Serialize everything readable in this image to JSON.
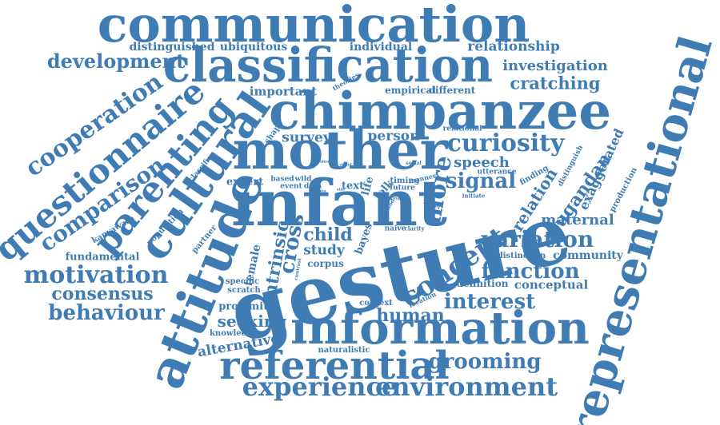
{
  "colors": {
    "word": "#3f7cb3",
    "background": "#ffffff"
  },
  "words": [
    "communication",
    "classification",
    "chimpanzee",
    "mother",
    "infant",
    "gesture",
    "information",
    "referential",
    "experience",
    "environment",
    "representational",
    "attitude",
    "cultural",
    "parenting",
    "questionnaire",
    "cooperation",
    "comparison",
    "development",
    "distinguished",
    "ubiquitous",
    "individual",
    "relationship",
    "investigation",
    "cratching",
    "important",
    "empirical",
    "different",
    "theories",
    "shape",
    "survey",
    "person",
    "curiosity",
    "relational",
    "speech",
    "signal",
    "more",
    "concept",
    "exaggerated",
    "ugandan",
    "relation",
    "maternal",
    "distinguish",
    "production",
    "finding",
    "utterance",
    "classifier",
    "expert",
    "based",
    "wild",
    "event",
    "data",
    "text",
    "life",
    "folk",
    "timing",
    "future",
    "manner",
    "belief",
    "initiate",
    "kanyawara",
    "population",
    "partner",
    "fundamental",
    "motivation",
    "consensus",
    "behaviour",
    "intrinsic",
    "cross",
    "female",
    "child",
    "bayes",
    "naive",
    "clarity",
    "study",
    "corpus",
    "variation",
    "distinction",
    "community",
    "function",
    "conceptual",
    "definition",
    "interest",
    "specific",
    "scratch",
    "proximity",
    "seeking",
    "knowledge",
    "context",
    "location",
    "human",
    "alternative",
    "naturalistic",
    "grooming",
    "social",
    "contrast",
    "method",
    "word",
    "smart",
    "stand",
    "site",
    "attn",
    "living"
  ]
}
